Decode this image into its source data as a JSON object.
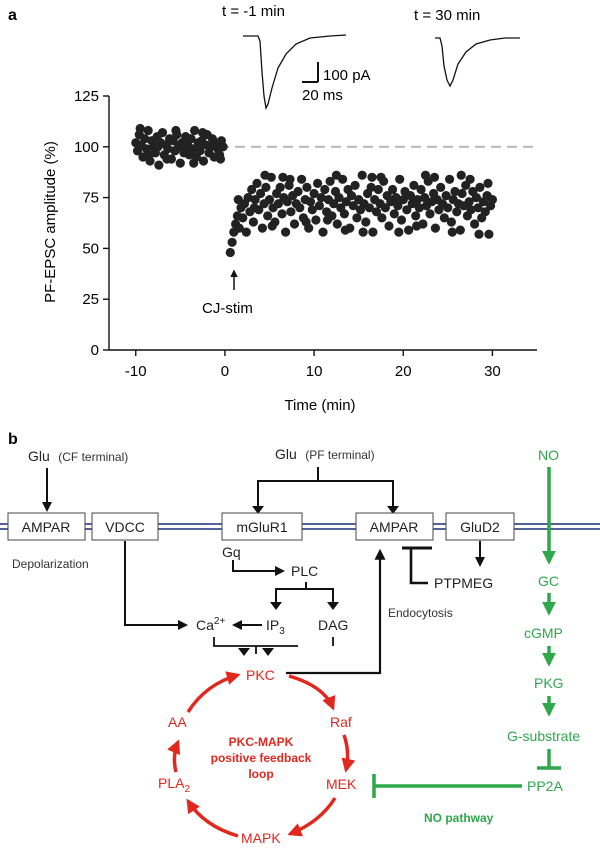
{
  "panel_a": {
    "label": "a",
    "trace_labels": [
      "t = -1 min",
      "t = 30 min"
    ],
    "scale_bar": {
      "current": "100 pA",
      "time": "20 ms"
    },
    "stim_label": "CJ-stim"
  },
  "chart_data": {
    "type": "scatter",
    "title": "",
    "xlabel": "Time (min)",
    "ylabel": "PF-EPSC amplitude (%)",
    "xlim": [
      -13,
      35
    ],
    "ylim": [
      0,
      125
    ],
    "xticks": [
      -10,
      0,
      10,
      20,
      30
    ],
    "yticks": [
      0,
      25,
      50,
      75,
      100,
      125
    ],
    "reference_line": {
      "y": 100,
      "style": "dashed",
      "color": "#bbbbbb"
    },
    "annotation": {
      "text": "CJ-stim",
      "x": 0
    },
    "marker_color": "#222222",
    "series": [
      {
        "points": [
          [
            -10,
            102
          ],
          [
            -9.8,
            98
          ],
          [
            -9.6,
            106
          ],
          [
            -9.4,
            101
          ],
          [
            -9.2,
            95
          ],
          [
            -9,
            104
          ],
          [
            -8.8,
            99
          ],
          [
            -8.6,
            108
          ],
          [
            -8.4,
            93
          ],
          [
            -8.2,
            103
          ],
          [
            -8,
            100
          ],
          [
            -7.8,
            97
          ],
          [
            -7.6,
            105
          ],
          [
            -7.4,
            91
          ],
          [
            -7.2,
            102
          ],
          [
            -7,
            107
          ],
          [
            -6.8,
            96
          ],
          [
            -6.6,
            101
          ],
          [
            -6.4,
            99
          ],
          [
            -6.2,
            104
          ],
          [
            -6,
            94
          ],
          [
            -5.8,
            103
          ],
          [
            -5.6,
            98
          ],
          [
            -5.4,
            106
          ],
          [
            -5.2,
            100
          ],
          [
            -5,
            92
          ],
          [
            -4.8,
            102
          ],
          [
            -4.6,
            97
          ],
          [
            -4.4,
            105
          ],
          [
            -4.2,
            101
          ],
          [
            -4,
            96
          ],
          [
            -3.8,
            104
          ],
          [
            -3.6,
            99
          ],
          [
            -3.4,
            108
          ],
          [
            -3.2,
            95
          ],
          [
            -3,
            102
          ],
          [
            -2.8,
            98
          ],
          [
            -2.6,
            103
          ],
          [
            -2.4,
            93
          ],
          [
            -2.2,
            101
          ],
          [
            -2,
            106
          ],
          [
            -1.8,
            97
          ],
          [
            -1.6,
            100
          ],
          [
            -1.4,
            104
          ],
          [
            -1.2,
            95
          ],
          [
            -1,
            102
          ],
          [
            -0.8,
            99
          ],
          [
            -0.6,
            96
          ],
          [
            -0.4,
            103
          ],
          [
            -0.2,
            100
          ],
          [
            -9.5,
            109
          ],
          [
            -8.5,
            96
          ],
          [
            -7.5,
            100
          ],
          [
            -6.5,
            94
          ],
          [
            -5.5,
            108
          ],
          [
            -4.5,
            99
          ],
          [
            -3.5,
            92
          ],
          [
            -2.5,
            107
          ],
          [
            -1.5,
            101
          ],
          [
            -0.5,
            94
          ],
          [
            0.6,
            48
          ],
          [
            0.8,
            53
          ],
          [
            1.0,
            58
          ],
          [
            1.2,
            62
          ],
          [
            1.4,
            66
          ],
          [
            1.6,
            60
          ],
          [
            1.8,
            70
          ],
          [
            2.0,
            65
          ],
          [
            2.2,
            72
          ],
          [
            2.4,
            58
          ],
          [
            2.6,
            75
          ],
          [
            2.8,
            68
          ],
          [
            3.0,
            79
          ],
          [
            3.2,
            63
          ],
          [
            3.4,
            74
          ],
          [
            3.6,
            82
          ],
          [
            3.8,
            69
          ],
          [
            4.0,
            77
          ],
          [
            4.2,
            60
          ],
          [
            4.4,
            72
          ],
          [
            4.6,
            80
          ],
          [
            4.8,
            66
          ],
          [
            5.0,
            74
          ],
          [
            5.2,
            85
          ],
          [
            5.4,
            70
          ],
          [
            5.6,
            63
          ],
          [
            5.8,
            77
          ],
          [
            6.0,
            72
          ],
          [
            6.2,
            80
          ],
          [
            6.4,
            67
          ],
          [
            6.6,
            75
          ],
          [
            6.8,
            58
          ],
          [
            7.0,
            73
          ],
          [
            7.2,
            81
          ],
          [
            7.4,
            68
          ],
          [
            7.6,
            76
          ],
          [
            7.8,
            62
          ],
          [
            8.0,
            72
          ],
          [
            8.2,
            78
          ],
          [
            8.4,
            70
          ],
          [
            8.6,
            84
          ],
          [
            8.8,
            65
          ],
          [
            9.0,
            74
          ],
          [
            9.2,
            80
          ],
          [
            9.4,
            60
          ],
          [
            9.6,
            73
          ],
          [
            9.8,
            69
          ],
          [
            10.0,
            77
          ],
          [
            10.2,
            64
          ],
          [
            10.4,
            82
          ],
          [
            10.6,
            71
          ],
          [
            10.8,
            75
          ],
          [
            11.0,
            58
          ],
          [
            11.2,
            79
          ],
          [
            11.4,
            68
          ],
          [
            11.6,
            74
          ],
          [
            11.8,
            83
          ],
          [
            12.0,
            66
          ],
          [
            12.2,
            72
          ],
          [
            12.4,
            78
          ],
          [
            12.6,
            62
          ],
          [
            12.8,
            75
          ],
          [
            13.0,
            70
          ],
          [
            13.2,
            84
          ],
          [
            13.4,
            67
          ],
          [
            13.6,
            73
          ],
          [
            13.8,
            79
          ],
          [
            14.0,
            60
          ],
          [
            14.2,
            76
          ],
          [
            14.4,
            71
          ],
          [
            14.6,
            81
          ],
          [
            14.8,
            65
          ],
          [
            15.0,
            74
          ],
          [
            15.2,
            69
          ],
          [
            15.4,
            86
          ],
          [
            15.6,
            72
          ],
          [
            15.8,
            63
          ],
          [
            16.0,
            77
          ],
          [
            16.2,
            70
          ],
          [
            16.4,
            80
          ],
          [
            16.6,
            58
          ],
          [
            16.8,
            74
          ],
          [
            17.0,
            68
          ],
          [
            17.2,
            79
          ],
          [
            17.4,
            72
          ],
          [
            17.6,
            65
          ],
          [
            17.8,
            83
          ],
          [
            18.0,
            70
          ],
          [
            18.2,
            76
          ],
          [
            18.4,
            61
          ],
          [
            18.6,
            73
          ],
          [
            18.8,
            79
          ],
          [
            19.0,
            67
          ],
          [
            19.2,
            75
          ],
          [
            19.4,
            71
          ],
          [
            19.6,
            84
          ],
          [
            19.8,
            64
          ],
          [
            20.0,
            74
          ],
          [
            20.2,
            78
          ],
          [
            20.4,
            69
          ],
          [
            20.6,
            59
          ],
          [
            20.8,
            76
          ],
          [
            21.0,
            72
          ],
          [
            21.2,
            81
          ],
          [
            21.4,
            66
          ],
          [
            21.6,
            74
          ],
          [
            21.8,
            70
          ],
          [
            22.0,
            79
          ],
          [
            22.2,
            62
          ],
          [
            22.4,
            75
          ],
          [
            22.6,
            71
          ],
          [
            22.8,
            83
          ],
          [
            23.0,
            67
          ],
          [
            23.2,
            73
          ],
          [
            23.4,
            77
          ],
          [
            23.6,
            60
          ],
          [
            23.8,
            74
          ],
          [
            24.0,
            69
          ],
          [
            24.2,
            80
          ],
          [
            24.4,
            72
          ],
          [
            24.6,
            65
          ],
          [
            24.8,
            76
          ],
          [
            25.0,
            70
          ],
          [
            25.2,
            84
          ],
          [
            25.4,
            63
          ],
          [
            25.6,
            74
          ],
          [
            25.8,
            78
          ],
          [
            26.0,
            68
          ],
          [
            26.2,
            72
          ],
          [
            26.4,
            59
          ],
          [
            26.6,
            77
          ],
          [
            26.8,
            71
          ],
          [
            27.0,
            81
          ],
          [
            27.2,
            66
          ],
          [
            27.4,
            73
          ],
          [
            27.6,
            69
          ],
          [
            27.8,
            78
          ],
          [
            28.0,
            62
          ],
          [
            28.2,
            75
          ],
          [
            28.4,
            70
          ],
          [
            28.6,
            80
          ],
          [
            28.8,
            65
          ],
          [
            29.0,
            73
          ],
          [
            29.2,
            68
          ],
          [
            29.4,
            76
          ],
          [
            29.6,
            57
          ],
          [
            29.8,
            71
          ],
          [
            30.0,
            74
          ],
          [
            1.5,
            74
          ],
          [
            3.3,
            70
          ],
          [
            5.3,
            61
          ],
          [
            7.3,
            84
          ],
          [
            9.1,
            63
          ],
          [
            11.5,
            64
          ],
          [
            13.5,
            59
          ],
          [
            15.5,
            58
          ],
          [
            17.5,
            85
          ],
          [
            19.5,
            58
          ],
          [
            21.5,
            61
          ],
          [
            23.5,
            85
          ],
          [
            25.5,
            58
          ],
          [
            27.5,
            84
          ],
          [
            29.5,
            82
          ],
          [
            4.5,
            86
          ],
          [
            6.5,
            85
          ],
          [
            12.5,
            86
          ],
          [
            16.5,
            85
          ],
          [
            22.5,
            86
          ],
          [
            26.5,
            86
          ],
          [
            28.5,
            57
          ]
        ]
      }
    ]
  },
  "panel_b": {
    "label": "b",
    "glu_cf": {
      "main": "Glu",
      "sub": "(CF terminal)"
    },
    "glu_pf": {
      "main": "Glu",
      "sub": "(PF terminal)"
    },
    "receptors": {
      "ampar_cf": "AMPAR",
      "vdcc": "VDCC",
      "mglur1": "mGluR1",
      "ampar_pf": "AMPAR",
      "glud2": "GluD2"
    },
    "labels": {
      "depolarization": "Depolarization",
      "gq": "Gq",
      "plc": "PLC",
      "ip3_main": "IP",
      "ip3_sub": "3",
      "dag": "DAG",
      "ca_main": "Ca",
      "ca_sup": "2+",
      "endocytosis": "Endocytosis",
      "ptpmeg": "PTPMEG"
    },
    "loop": {
      "pkc": "PKC",
      "raf": "Raf",
      "mek": "MEK",
      "mapk": "MAPK",
      "pla2_main": "PLA",
      "pla2_sub": "2",
      "aa": "AA",
      "title_lines": [
        "PKC-MAPK",
        "positive feedback",
        "loop"
      ]
    },
    "no_pathway": {
      "steps": [
        "NO",
        "GC",
        "cGMP",
        "PKG",
        "G-substrate",
        "PP2A"
      ],
      "label": "NO pathway"
    },
    "colors": {
      "red": "#e0281e",
      "green": "#2ea84a",
      "membrane": "#1a2f7a",
      "black": "#111111"
    }
  }
}
